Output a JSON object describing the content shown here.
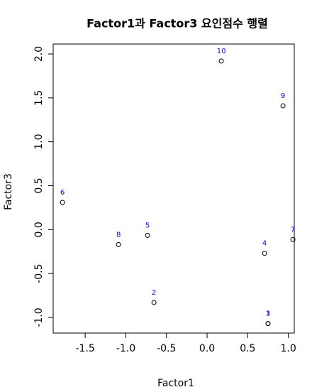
{
  "chart_data": {
    "type": "scatter",
    "title": "Factor1과 Factor3 요인점수 행렬",
    "x_label": "Factor1",
    "y_label": "Factor3",
    "labels": [
      "1",
      "2",
      "3",
      "4",
      "5",
      "6",
      "7",
      "8",
      "9",
      "10"
    ],
    "x": [
      0.75,
      -0.654,
      0.75,
      0.707,
      -0.733,
      -1.78,
      1.056,
      -1.09,
      0.934,
      0.175
    ],
    "y": [
      -1.07,
      -0.83,
      -1.07,
      -0.27,
      -0.065,
      0.31,
      -0.113,
      -0.17,
      1.41,
      1.92
    ],
    "color": "#000000",
    "label_color": "#0000ff",
    "xlim": [
      -1.894,
      1.073
    ],
    "ylim": [
      -1.178,
      2.113
    ],
    "xticks": [
      -1.5,
      {
        "value": -1.0,
        "label": "-1.0"
      },
      -0.5,
      {
        "value": 0.0,
        "label": "0.0"
      },
      0.5,
      {
        "value": 1.0,
        "label": "1.0"
      }
    ],
    "yticks": [
      {
        "value": -1.0,
        "label": "-1.0"
      },
      -0.5,
      {
        "value": 0.0,
        "label": "0.0"
      },
      0.5,
      {
        "value": 1.0,
        "label": "1.0"
      },
      1.5,
      {
        "value": 2.0,
        "label": "2.0"
      }
    ]
  }
}
